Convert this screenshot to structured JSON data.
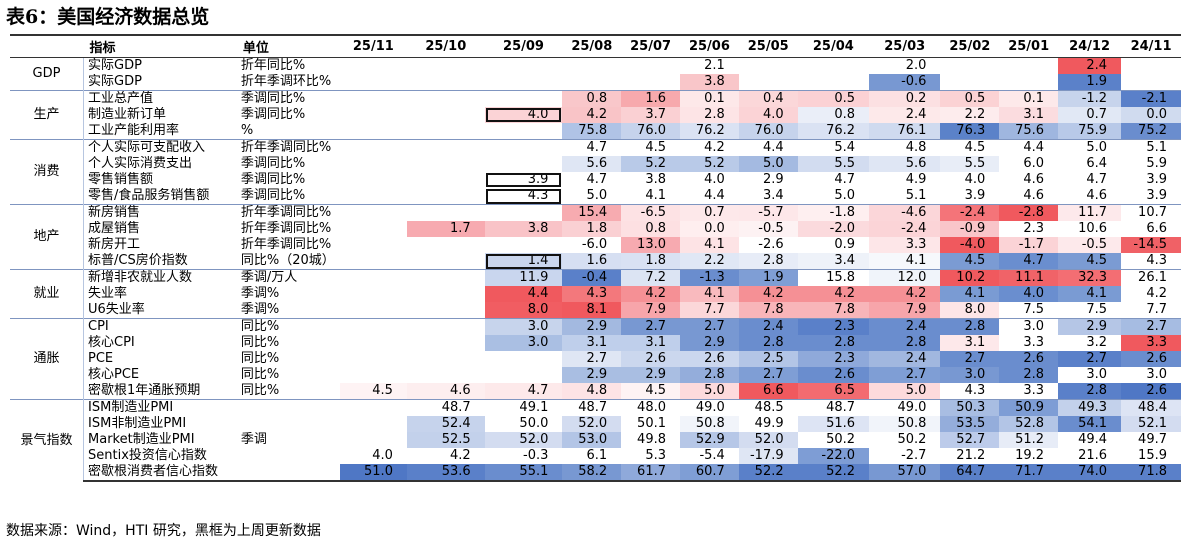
{
  "title": "表6：美国经济数据总览",
  "source": "数据来源：Wind，HTI 研究，黑框为上周更新数据",
  "headers": {
    "indicator": "指标",
    "unit": "单位",
    "periods": [
      "25/11",
      "25/10",
      "25/09",
      "25/08",
      "25/07",
      "25/06",
      "25/05",
      "25/04",
      "25/03",
      "25/02",
      "25/01",
      "24/12",
      "24/11"
    ]
  },
  "groups": [
    {
      "name": "GDP",
      "rows": [
        {
          "indicator": "实际GDP",
          "unit": "折年同比%",
          "values": [
            "",
            "",
            "",
            "",
            "",
            "2.1",
            "",
            "",
            "2.0",
            "",
            "",
            "2.4",
            ""
          ],
          "colors": [
            "",
            "",
            "",
            "",
            "",
            "#ffffff",
            "",
            "",
            "#ffffff",
            "",
            "",
            "#f0595e",
            ""
          ]
        },
        {
          "indicator": "实际GDP",
          "unit": "折年季调环比%",
          "values": [
            "",
            "",
            "",
            "",
            "",
            "3.8",
            "",
            "",
            "-0.6",
            "",
            "",
            "1.9",
            ""
          ],
          "colors": [
            "",
            "",
            "",
            "",
            "",
            "#f9c6c9",
            "",
            "",
            "#7898d2",
            "",
            "",
            "#5b81c9",
            ""
          ]
        }
      ]
    },
    {
      "name": "生产",
      "rows": [
        {
          "indicator": "工业总产值",
          "unit": "季调同比%",
          "values": [
            "",
            "",
            "",
            "0.8",
            "1.6",
            "0.1",
            "0.4",
            "0.5",
            "0.2",
            "0.5",
            "0.1",
            "-1.2",
            "-2.1"
          ],
          "colors": [
            "",
            "",
            "",
            "#f9c7ca",
            "#f7a9ad",
            "#fde8e9",
            "#fbd7d9",
            "#fbd1d4",
            "#fce0e2",
            "#fbd2d4",
            "#fde9ea",
            "#c7d4ec",
            "#5a80c9"
          ]
        },
        {
          "indicator": "制造业新订单",
          "unit": "季调同比%",
          "values": [
            "",
            "",
            "4.0",
            "4.2",
            "3.7",
            "2.8",
            "4.0",
            "0.8",
            "2.4",
            "2.2",
            "3.1",
            "0.7",
            "0.0"
          ],
          "colors": [
            "",
            "",
            "#fbd3d6",
            "#f9c4c7",
            "#fad0d3",
            "#fde4e6",
            "#fbd3d6",
            "#eaeef8",
            "#fde9ea",
            "#fdeced",
            "#fbdcdf",
            "#e1e8f5",
            "#d0dbef"
          ],
          "boxed": [
            2
          ]
        },
        {
          "indicator": "工业产能利用率",
          "unit": "%",
          "values": [
            "",
            "",
            "",
            "75.8",
            "76.0",
            "76.2",
            "76.0",
            "76.2",
            "76.1",
            "76.3",
            "75.6",
            "75.9",
            "75.2"
          ],
          "colors": [
            "",
            "",
            "",
            "#b0c3e6",
            "#c6d3ec",
            "#dae2f3",
            "#c6d3ec",
            "#dae2f3",
            "#cfdaef",
            "#5b82c9",
            "#9fb6df",
            "#b8c9e8",
            "#6a8dce"
          ]
        }
      ]
    },
    {
      "name": "消费",
      "rows": [
        {
          "indicator": "个人实际可支配收入",
          "unit": "折年季调同比%",
          "values": [
            "",
            "",
            "",
            "4.7",
            "4.5",
            "4.2",
            "4.4",
            "5.4",
            "4.8",
            "4.5",
            "4.4",
            "5.0",
            "5.1"
          ],
          "colors": [
            "",
            "",
            "",
            "#ffffff",
            "#ffffff",
            "#ffffff",
            "#ffffff",
            "#ffffff",
            "#ffffff",
            "#ffffff",
            "#ffffff",
            "#ffffff",
            "#ffffff"
          ]
        },
        {
          "indicator": "个人实际消费支出",
          "unit": "季调同比%",
          "values": [
            "",
            "",
            "",
            "5.6",
            "5.2",
            "5.2",
            "5.0",
            "5.5",
            "5.6",
            "5.5",
            "6.0",
            "6.4",
            "5.9"
          ],
          "colors": [
            "",
            "",
            "",
            "#dfe6f4",
            "#b9cae8",
            "#b9cae8",
            "#a4bae1",
            "#d2dcf0",
            "#dfe6f4",
            "#e8edf7",
            "#ffffff",
            "#ffffff",
            "#ffffff"
          ]
        },
        {
          "indicator": "零售销售额",
          "unit": "季调同比%",
          "values": [
            "",
            "",
            "3.9",
            "4.7",
            "3.8",
            "4.0",
            "2.9",
            "4.7",
            "4.9",
            "4.0",
            "4.6",
            "4.7",
            "3.9"
          ],
          "colors": [
            "",
            "",
            "#ffffff",
            "#ffffff",
            "#ffffff",
            "#ffffff",
            "#ffffff",
            "#ffffff",
            "#ffffff",
            "#ffffff",
            "#ffffff",
            "#ffffff",
            "#ffffff"
          ],
          "boxed": [
            2
          ]
        },
        {
          "indicator": "零售/食品服务销售额",
          "unit": "季调同比%",
          "values": [
            "",
            "",
            "4.3",
            "5.0",
            "4.1",
            "4.4",
            "3.4",
            "5.0",
            "5.1",
            "3.9",
            "4.6",
            "4.6",
            "3.9"
          ],
          "colors": [
            "",
            "",
            "#ffffff",
            "#ffffff",
            "#ffffff",
            "#ffffff",
            "#ffffff",
            "#ffffff",
            "#ffffff",
            "#ffffff",
            "#ffffff",
            "#ffffff",
            "#ffffff"
          ],
          "boxed": [
            2
          ]
        }
      ]
    },
    {
      "name": "地产",
      "rows": [
        {
          "indicator": "新房销售",
          "unit": "折年季调同比%",
          "values": [
            "",
            "",
            "",
            "15.4",
            "-6.5",
            "0.7",
            "-5.7",
            "-1.8",
            "-4.6",
            "-2.4",
            "-2.8",
            "11.7",
            "10.7"
          ],
          "colors": [
            "",
            "",
            "",
            "#f7abb0",
            "#fde2e4",
            "#fde8ea",
            "#fde7e9",
            "#feeff0",
            "#fbd6d9",
            "#f47479",
            "#f0595e",
            "#fde9eb",
            "#ffffff"
          ]
        },
        {
          "indicator": "成屋销售",
          "unit": "折年季调同比%",
          "values": [
            "",
            "1.7",
            "3.8",
            "1.8",
            "0.8",
            "0.0",
            "-0.5",
            "-2.0",
            "-2.4",
            "-0.9",
            "2.3",
            "10.6",
            "6.6"
          ],
          "colors": [
            "",
            "#f7aab0",
            "#f9c3c7",
            "#fad0d3",
            "#fde0e2",
            "#feeeef",
            "#fdf2f3",
            "#fbdadd",
            "#fbd4d7",
            "#f9c5c9",
            "#ffffff",
            "#ffffff",
            "#ffffff"
          ]
        },
        {
          "indicator": "新房开工",
          "unit": "折年季调同比%",
          "values": [
            "",
            "",
            "",
            "-6.0",
            "13.0",
            "4.1",
            "-2.6",
            "0.9",
            "3.3",
            "-4.0",
            "-1.7",
            "-0.5",
            "-14.5"
          ],
          "colors": [
            "",
            "",
            "",
            "#ffffff",
            "#f7aab0",
            "#fde3e5",
            "#ffffff",
            "#ffffff",
            "#fde6e8",
            "#f0595e",
            "#fbd3d6",
            "#fde9eb",
            "#f06166"
          ]
        },
        {
          "indicator": "标普/CS房价指数",
          "unit": "同比%（20城）",
          "values": [
            "",
            "",
            "1.4",
            "1.6",
            "1.8",
            "2.2",
            "2.8",
            "3.4",
            "4.1",
            "4.5",
            "4.7",
            "4.5",
            "4.3"
          ],
          "colors": [
            "",
            "",
            "#c9d5ed",
            "#d6dff2",
            "#d9e1f3",
            "#e0e7f5",
            "#e7ecf7",
            "#eef2f9",
            "#f6f8fc",
            "#7b9bd3",
            "#6a8ecf",
            "#7b9bd3",
            "#ffffff"
          ],
          "boxed": [
            2
          ]
        }
      ]
    },
    {
      "name": "就业",
      "rows": [
        {
          "indicator": "新增非农就业人数",
          "unit": "季调/万人",
          "values": [
            "",
            "",
            "11.9",
            "-0.4",
            "7.2",
            "-1.3",
            "1.9",
            "15.8",
            "12.0",
            "10.2",
            "11.1",
            "32.3",
            "26.1"
          ],
          "colors": [
            "",
            "",
            "#c9d6ee",
            "#5a80c9",
            "#dce4f3",
            "#6a8dce",
            "#7f9ed5",
            "#ffffff",
            "#f0f4fa",
            "#f0595e",
            "#f06368",
            "#f36e73",
            "#ffffff"
          ]
        },
        {
          "indicator": "失业率",
          "unit": "季调%",
          "values": [
            "",
            "",
            "4.4",
            "4.3",
            "4.2",
            "4.1",
            "4.2",
            "4.2",
            "4.2",
            "4.1",
            "4.0",
            "4.1",
            "4.2"
          ],
          "colors": [
            "",
            "",
            "#f0595e",
            "#f3787c",
            "#f59095",
            "#f9babe",
            "#f59095",
            "#f59095",
            "#f59095",
            "#7a9bd3",
            "#6a8ecf",
            "#7a9bd3",
            "#ffffff"
          ]
        },
        {
          "indicator": "U6失业率",
          "unit": "季调%",
          "values": [
            "",
            "",
            "8.0",
            "8.1",
            "7.9",
            "7.7",
            "7.8",
            "7.8",
            "7.9",
            "8.0",
            "7.5",
            "7.5",
            "7.7"
          ],
          "colors": [
            "",
            "",
            "#f15d62",
            "#f0595e",
            "#f7a5aa",
            "#fbd7d9",
            "#f8b5b9",
            "#f8b5b9",
            "#f7a5aa",
            "#fde5e7",
            "#ffffff",
            "#ffffff",
            "#ffffff"
          ]
        }
      ]
    },
    {
      "name": "通胀",
      "rows": [
        {
          "indicator": "CPI",
          "unit": "同比%",
          "values": [
            "",
            "",
            "3.0",
            "2.9",
            "2.7",
            "2.7",
            "2.4",
            "2.3",
            "2.4",
            "2.8",
            "3.0",
            "2.9",
            "2.7"
          ],
          "colors": [
            "",
            "",
            "#c7d4ec",
            "#a3b9e0",
            "#7898d2",
            "#7898d2",
            "#6a8dce",
            "#5a80c9",
            "#6a8dce",
            "#6a8dce",
            "#ffffff",
            "#b5c6e6",
            "#a6bce2"
          ]
        },
        {
          "indicator": "核心CPI",
          "unit": "同比%",
          "values": [
            "",
            "",
            "3.0",
            "3.1",
            "3.1",
            "2.9",
            "2.8",
            "2.8",
            "2.8",
            "3.1",
            "3.3",
            "3.2",
            "3.3"
          ],
          "colors": [
            "",
            "",
            "#aabfe3",
            "#bfcfeb",
            "#bfcfeb",
            "#7898d2",
            "#6a8dce",
            "#6a8dce",
            "#6a8dce",
            "#fde8ea",
            "#ffffff",
            "#ffffff",
            "#f0595e"
          ]
        },
        {
          "indicator": "PCE",
          "unit": "同比%",
          "values": [
            "",
            "",
            "",
            "2.7",
            "2.6",
            "2.6",
            "2.5",
            "2.3",
            "2.4",
            "2.7",
            "2.6",
            "2.7",
            "2.6"
          ],
          "colors": [
            "",
            "",
            "",
            "#dfe6f4",
            "#cbd7ee",
            "#cbd7ee",
            "#b3c5e6",
            "#8fa9da",
            "#a1b7df",
            "#6a8dce",
            "#6a8dce",
            "#5a80c9",
            "#6a8dce"
          ]
        },
        {
          "indicator": "核心PCE",
          "unit": "同比%",
          "values": [
            "",
            "",
            "",
            "2.9",
            "2.9",
            "2.8",
            "2.7",
            "2.6",
            "2.7",
            "3.0",
            "2.8",
            "3.0",
            "3.0"
          ],
          "colors": [
            "",
            "",
            "",
            "#a9bee2",
            "#a9bee2",
            "#94addb",
            "#7f9ed5",
            "#6a8dce",
            "#7f9ed5",
            "#7898d2",
            "#6a8dce",
            "#ffffff",
            "#ffffff"
          ]
        },
        {
          "indicator": "密歇根1年通胀预期",
          "unit": "同比%",
          "values": [
            "4.5",
            "4.6",
            "4.7",
            "4.8",
            "4.5",
            "5.0",
            "6.6",
            "6.5",
            "5.0",
            "4.3",
            "3.3",
            "2.8",
            "2.6"
          ],
          "colors": [
            "#fef3f4",
            "#fdeeef",
            "#fde9ea",
            "#fde3e5",
            "#fef3f4",
            "#fddadc",
            "#f0595e",
            "#f36b70",
            "#fddadc",
            "#ffffff",
            "#ffffff",
            "#5a80c9",
            "#4f77c5"
          ]
        }
      ]
    },
    {
      "name": "景气指数",
      "rows": [
        {
          "indicator": "ISM制造业PMI",
          "unit": "",
          "values": [
            "",
            "48.7",
            "49.1",
            "48.7",
            "48.0",
            "49.0",
            "48.5",
            "48.7",
            "49.0",
            "50.3",
            "50.9",
            "49.3",
            "48.4"
          ],
          "colors": [
            "",
            "#ffffff",
            "#ffffff",
            "#ffffff",
            "#ffffff",
            "#ffffff",
            "#ffffff",
            "#ffffff",
            "#ffffff",
            "#a8bde2",
            "#7e9dd5",
            "#c3d1eb",
            "#dde4f4"
          ]
        },
        {
          "indicator": "ISM非制造业PMI",
          "unit": "",
          "values": [
            "",
            "52.4",
            "50.0",
            "52.0",
            "50.1",
            "50.8",
            "49.9",
            "51.6",
            "50.8",
            "53.5",
            "52.8",
            "54.1",
            "52.1"
          ],
          "colors": [
            "",
            "#c6d3ec",
            "#ffffff",
            "#d3dcf0",
            "#ffffff",
            "#f1f4fa",
            "#ffffff",
            "#dde4f4",
            "#f1f4fa",
            "#94addb",
            "#b3c5e6",
            "#6a8dce",
            "#d3dcf0"
          ]
        },
        {
          "indicator": "Market制造业PMI",
          "unit": "季调",
          "values": [
            "",
            "52.5",
            "52.0",
            "53.0",
            "49.8",
            "52.9",
            "52.0",
            "50.2",
            "50.2",
            "52.7",
            "51.2",
            "49.4",
            "49.7"
          ],
          "colors": [
            "",
            "#c3d1eb",
            "#d3dcf0",
            "#b3c5e6",
            "#ffffff",
            "#b6c7e7",
            "#d3dcf0",
            "#ffffff",
            "#ffffff",
            "#bccbea",
            "#e7ecf7",
            "#ffffff",
            "#ffffff"
          ]
        },
        {
          "indicator": "Sentix投资信心指数",
          "unit": "",
          "values": [
            "4.0",
            "4.2",
            "-0.3",
            "6.1",
            "5.3",
            "-5.4",
            "-17.9",
            "-22.0",
            "-2.7",
            "21.2",
            "19.2",
            "21.6",
            "15.9"
          ],
          "colors": [
            "#ffffff",
            "#ffffff",
            "#ffffff",
            "#ffffff",
            "#ffffff",
            "#ffffff",
            "#dfe6f4",
            "#7e9dd5",
            "#ffffff",
            "#ffffff",
            "#ffffff",
            "#ffffff",
            "#ffffff"
          ]
        },
        {
          "indicator": "密歇根消费者信心指数",
          "unit": "",
          "values": [
            "51.0",
            "53.6",
            "55.1",
            "58.2",
            "61.7",
            "60.7",
            "52.2",
            "52.2",
            "57.0",
            "64.7",
            "71.7",
            "74.0",
            "71.8"
          ],
          "colors": [
            "#4f77c5",
            "#5a80c9",
            "#6a8dce",
            "#7898d2",
            "#8fa9da",
            "#7f9ed5",
            "#5a80c9",
            "#5a80c9",
            "#7898d2",
            "#5a80c9",
            "#5a80c9",
            "#5a80c9",
            "#5a80c9"
          ]
        }
      ]
    }
  ]
}
